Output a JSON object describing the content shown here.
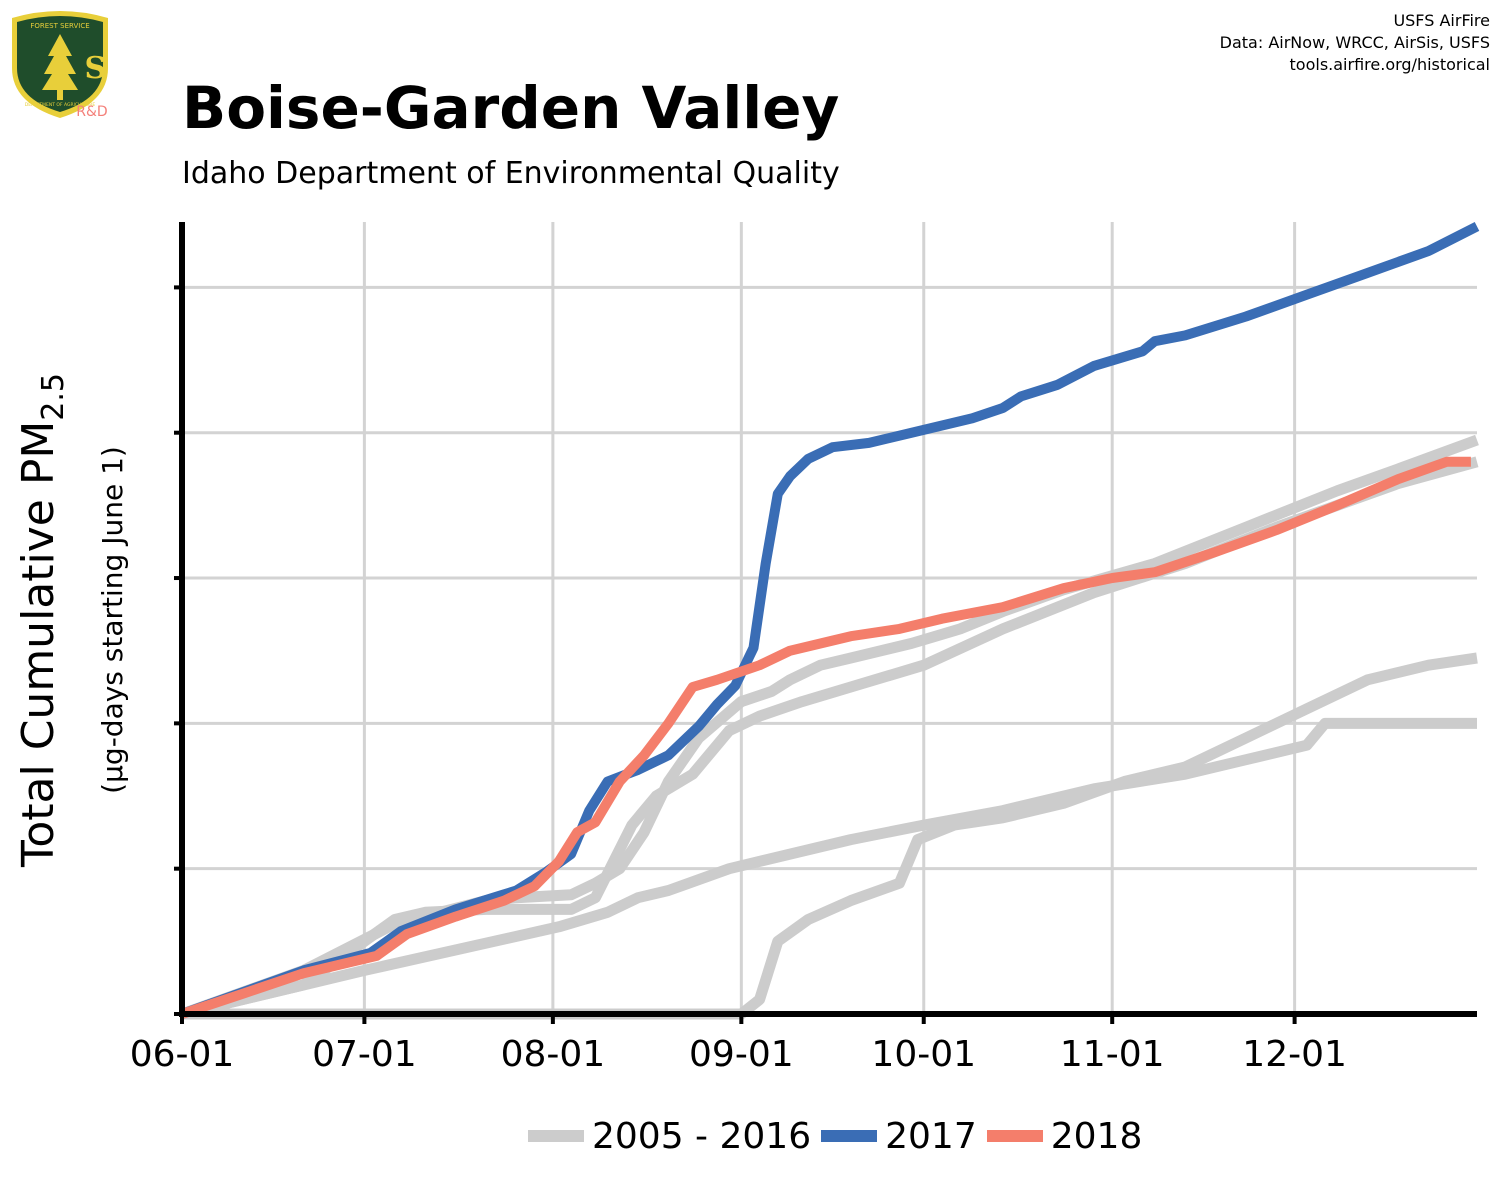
{
  "header": {
    "title": "Boise-Garden Valley",
    "subtitle": "Idaho Department of Environmental Quality",
    "credits": [
      "USFS AirFire",
      "Data: AirNow, WRCC, AirSis, USFS",
      "tools.airfire.org/historical"
    ],
    "logo": {
      "top_text": "FOREST SERVICE",
      "letters": "U S",
      "bottom_text": "DEPARTMENT OF AGRICULTURE",
      "tag": "R&D",
      "colors": {
        "shield": "#1f4d2b",
        "gold": "#e8cf3a",
        "tag": "#f4807a"
      }
    }
  },
  "chart_data": {
    "type": "line",
    "title": "Boise-Garden Valley",
    "xlabel": "",
    "ylabel": "Total Cumulative PM2.5",
    "ylabel_main": "Total Cumulative PM",
    "ylabel_sub": "2.5",
    "ylabel_note": "(µg-days starting June 1)",
    "x_ticks": [
      "06-01",
      "07-01",
      "08-01",
      "09-01",
      "10-01",
      "11-01",
      "12-01"
    ],
    "x_tick_days": [
      0,
      30,
      61,
      92,
      122,
      153,
      183
    ],
    "xlim": [
      0,
      213
    ],
    "ylim": [
      0,
      5.45
    ],
    "y_ticks": [
      0,
      1,
      2,
      3,
      4,
      5
    ],
    "y_tick_labels": [
      "",
      "",
      "",
      "",
      "",
      ""
    ],
    "grid": true,
    "legend_position": "bottom",
    "legend": [
      "2005 - 2016",
      "2017",
      "2018"
    ],
    "series": [
      {
        "name": "2005 - 2016",
        "color": "#cccccc",
        "group": "historical",
        "points": [
          [
            0,
            0
          ],
          [
            92,
            0
          ],
          [
            95,
            0.1
          ],
          [
            98,
            0.5
          ],
          [
            103,
            0.65
          ],
          [
            110,
            0.78
          ],
          [
            118,
            0.9
          ],
          [
            121,
            1.2
          ],
          [
            127,
            1.3
          ],
          [
            135,
            1.35
          ],
          [
            145,
            1.45
          ],
          [
            155,
            1.6
          ],
          [
            165,
            1.7
          ],
          [
            175,
            1.9
          ],
          [
            185,
            2.1
          ],
          [
            195,
            2.3
          ],
          [
            205,
            2.4
          ],
          [
            213,
            2.45
          ]
        ]
      },
      {
        "name": "2005 - 2016",
        "color": "#cccccc",
        "group": "historical",
        "points": [
          [
            0,
            0
          ],
          [
            30,
            0.3
          ],
          [
            62,
            0.6
          ],
          [
            70,
            0.7
          ],
          [
            75,
            0.8
          ],
          [
            80,
            0.85
          ],
          [
            90,
            1.0
          ],
          [
            100,
            1.1
          ],
          [
            110,
            1.2
          ],
          [
            122,
            1.3
          ],
          [
            135,
            1.4
          ],
          [
            150,
            1.55
          ],
          [
            165,
            1.65
          ],
          [
            175,
            1.75
          ],
          [
            185,
            1.85
          ],
          [
            188,
            2.0
          ],
          [
            213,
            2.0
          ]
        ]
      },
      {
        "name": "2005 - 2016",
        "color": "#cccccc",
        "group": "historical",
        "points": [
          [
            0,
            0
          ],
          [
            20,
            0.2
          ],
          [
            35,
            0.65
          ],
          [
            40,
            0.7
          ],
          [
            50,
            0.72
          ],
          [
            55,
            0.72
          ],
          [
            64,
            0.72
          ],
          [
            68,
            0.8
          ],
          [
            74,
            1.3
          ],
          [
            78,
            1.5
          ],
          [
            84,
            1.65
          ],
          [
            90,
            1.95
          ],
          [
            95,
            2.05
          ],
          [
            102,
            2.15
          ],
          [
            110,
            2.25
          ],
          [
            122,
            2.4
          ],
          [
            135,
            2.65
          ],
          [
            150,
            2.9
          ],
          [
            165,
            3.1
          ],
          [
            180,
            3.35
          ],
          [
            200,
            3.65
          ],
          [
            213,
            3.8
          ]
        ]
      },
      {
        "name": "2005 - 2016",
        "color": "#cccccc",
        "group": "historical",
        "points": [
          [
            0,
            0
          ],
          [
            20,
            0.3
          ],
          [
            35,
            0.62
          ],
          [
            50,
            0.78
          ],
          [
            55,
            0.8
          ],
          [
            64,
            0.82
          ],
          [
            68,
            0.9
          ],
          [
            72,
            1.0
          ],
          [
            76,
            1.25
          ],
          [
            80,
            1.6
          ],
          [
            85,
            1.9
          ],
          [
            92,
            2.15
          ],
          [
            97,
            2.22
          ],
          [
            100,
            2.3
          ],
          [
            105,
            2.4
          ],
          [
            110,
            2.45
          ],
          [
            120,
            2.55
          ],
          [
            128,
            2.65
          ],
          [
            135,
            2.77
          ],
          [
            145,
            2.92
          ],
          [
            160,
            3.1
          ],
          [
            175,
            3.35
          ],
          [
            190,
            3.6
          ],
          [
            200,
            3.75
          ],
          [
            213,
            3.95
          ]
        ]
      },
      {
        "name": "2017",
        "color": "#3a6db5",
        "group": "2017",
        "points": [
          [
            0,
            0
          ],
          [
            10,
            0.15
          ],
          [
            20,
            0.3
          ],
          [
            31,
            0.42
          ],
          [
            36,
            0.57
          ],
          [
            45,
            0.72
          ],
          [
            55,
            0.85
          ],
          [
            60,
            0.98
          ],
          [
            64,
            1.1
          ],
          [
            67,
            1.4
          ],
          [
            70,
            1.6
          ],
          [
            75,
            1.68
          ],
          [
            80,
            1.78
          ],
          [
            85,
            1.98
          ],
          [
            88,
            2.13
          ],
          [
            91,
            2.26
          ],
          [
            94,
            2.52
          ],
          [
            96,
            3.1
          ],
          [
            98,
            3.58
          ],
          [
            100,
            3.7
          ],
          [
            103,
            3.82
          ],
          [
            107,
            3.9
          ],
          [
            113,
            3.93
          ],
          [
            120,
            4.0
          ],
          [
            130,
            4.1
          ],
          [
            135,
            4.17
          ],
          [
            138,
            4.25
          ],
          [
            144,
            4.33
          ],
          [
            150,
            4.46
          ],
          [
            158,
            4.56
          ],
          [
            160,
            4.63
          ],
          [
            165,
            4.67
          ],
          [
            175,
            4.8
          ],
          [
            185,
            4.95
          ],
          [
            195,
            5.1
          ],
          [
            205,
            5.25
          ],
          [
            213,
            5.42
          ]
        ]
      },
      {
        "name": "2018",
        "color": "#f47e6b",
        "group": "2018",
        "points": [
          [
            0,
            0
          ],
          [
            10,
            0.14
          ],
          [
            20,
            0.28
          ],
          [
            32,
            0.4
          ],
          [
            37,
            0.55
          ],
          [
            45,
            0.67
          ],
          [
            53,
            0.78
          ],
          [
            58,
            0.88
          ],
          [
            62,
            1.05
          ],
          [
            65,
            1.25
          ],
          [
            68,
            1.32
          ],
          [
            72,
            1.6
          ],
          [
            76,
            1.78
          ],
          [
            80,
            2.0
          ],
          [
            84,
            2.25
          ],
          [
            88,
            2.3
          ],
          [
            95,
            2.4
          ],
          [
            100,
            2.5
          ],
          [
            110,
            2.6
          ],
          [
            118,
            2.65
          ],
          [
            125,
            2.72
          ],
          [
            135,
            2.8
          ],
          [
            145,
            2.93
          ],
          [
            153,
            3.0
          ],
          [
            160,
            3.04
          ],
          [
            170,
            3.18
          ],
          [
            180,
            3.33
          ],
          [
            190,
            3.5
          ],
          [
            200,
            3.68
          ],
          [
            208,
            3.8
          ],
          [
            212,
            3.8
          ]
        ]
      }
    ]
  }
}
